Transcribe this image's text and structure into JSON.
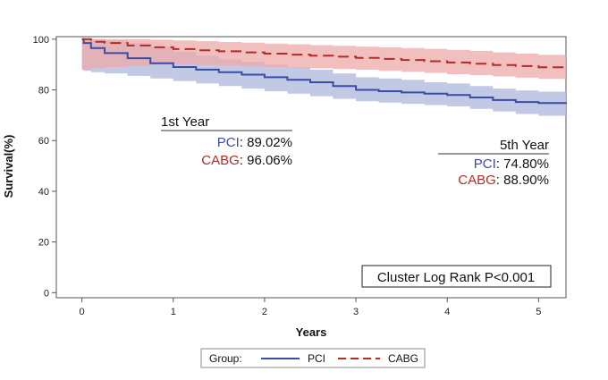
{
  "chart_data": {
    "type": "line",
    "title": "",
    "xlabel": "Years",
    "ylabel": "Survival(%)",
    "xlim": [
      -0.28,
      5.3
    ],
    "ylim": [
      -2,
      101
    ],
    "x_ticks": [
      0,
      1,
      2,
      3,
      4,
      5
    ],
    "y_ticks": [
      0,
      20,
      40,
      60,
      80,
      100
    ],
    "grid": false,
    "legend": {
      "title": "Group:",
      "position": "bottom-center"
    },
    "colors": {
      "PCI": "#3b4ba6",
      "CABG": "#b02e25",
      "PCI_band": "#b7bfe0",
      "CABG_band": "#eea9a9"
    },
    "series": [
      {
        "name": "PCI",
        "line_style": "solid",
        "x": [
          0,
          0.02,
          0.1,
          0.25,
          0.5,
          0.75,
          1.0,
          1.25,
          1.5,
          1.75,
          2.0,
          2.25,
          2.5,
          2.75,
          3.0,
          3.25,
          3.5,
          3.75,
          4.0,
          4.25,
          4.5,
          4.75,
          5.0,
          5.3
        ],
        "values": [
          100,
          98.5,
          96.5,
          94.5,
          92.5,
          90.5,
          89.0,
          88.0,
          87.0,
          86.0,
          85.0,
          84.0,
          83.0,
          81.5,
          80.0,
          79.5,
          79.0,
          78.5,
          78.0,
          77.0,
          76.0,
          75.2,
          74.8,
          74.5
        ],
        "lower": [
          88.0,
          87.5,
          87.0,
          86.5,
          85.5,
          84.5,
          83.5,
          82.5,
          81.5,
          80.5,
          79.5,
          78.5,
          77.5,
          76.5,
          75.5,
          75.0,
          74.5,
          74.0,
          73.5,
          72.5,
          71.5,
          70.5,
          69.8,
          69.5
        ],
        "upper": [
          100,
          100,
          100,
          99.5,
          98.5,
          97.0,
          95.0,
          93.5,
          92.0,
          91.0,
          90.0,
          89.0,
          88.0,
          86.5,
          85.0,
          84.5,
          84.0,
          83.0,
          82.5,
          81.5,
          80.5,
          79.8,
          79.3,
          79.0
        ]
      },
      {
        "name": "CABG",
        "line_style": "dashed",
        "x": [
          0,
          0.1,
          0.25,
          0.5,
          0.75,
          1.0,
          1.25,
          1.5,
          1.75,
          2.0,
          2.25,
          2.5,
          2.75,
          3.0,
          3.25,
          3.5,
          3.75,
          4.0,
          4.25,
          4.5,
          4.75,
          5.0,
          5.3
        ],
        "values": [
          100,
          99.0,
          98.5,
          97.5,
          96.8,
          96.1,
          95.6,
          95.2,
          94.8,
          94.3,
          93.9,
          93.5,
          93.1,
          92.6,
          92.2,
          91.8,
          91.3,
          90.8,
          90.3,
          89.8,
          89.4,
          88.9,
          88.4
        ],
        "lower": [
          88.0,
          88.5,
          89.0,
          89.5,
          90.0,
          90.0,
          89.8,
          89.6,
          89.3,
          89.0,
          88.8,
          88.5,
          88.2,
          87.9,
          87.5,
          87.1,
          86.7,
          86.2,
          85.8,
          85.3,
          84.8,
          84.3,
          83.8
        ],
        "upper": [
          100,
          100,
          100,
          100,
          99.8,
          99.5,
          99.2,
          98.9,
          98.6,
          98.3,
          98.0,
          97.7,
          97.4,
          97.1,
          96.8,
          96.5,
          96.2,
          95.8,
          95.4,
          94.8,
          94.3,
          93.8,
          93.2
        ]
      }
    ],
    "annotations": {
      "first_year": {
        "heading": "1st Year",
        "pci_label": "PCI",
        "pci_value": ": 89.02%",
        "cabg_label": "CABG",
        "cabg_value": ": 96.06%"
      },
      "fifth_year": {
        "heading": "5th Year",
        "pci_label": "PCI",
        "pci_value": ": 74.80%",
        "cabg_label": "CABG",
        "cabg_value": ": 88.90%"
      },
      "test_box": "Cluster Log Rank P<0.001"
    }
  }
}
